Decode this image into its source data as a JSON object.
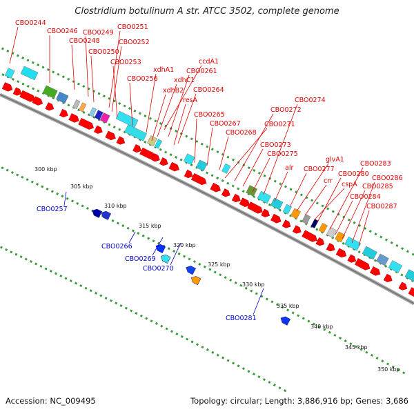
{
  "title": "Clostridium botulinum A str. ATCC 3502, complete genome",
  "footer": {
    "accession": "Accession: NC_009495",
    "topology": "Topology: circular; Length: 3,886,916 bp; Genes: 3,686"
  },
  "colors": {
    "forward_arrow": "#ff0000",
    "forward_label": "#e00000",
    "reverse_label": "#0000cc",
    "backbone": "#999999",
    "dots": "#3a9a3a"
  },
  "forward_genes": [
    "CBO0244",
    "CBO0246",
    "CBO0248",
    "CBO0249",
    "CBO0250",
    "CBO0251",
    "CBO0252",
    "CBO0253",
    "CBO0256",
    "xdhA1",
    "xdhB2",
    "xdhC1",
    "ccdA1",
    "CBO0261",
    "resA",
    "CBO0264",
    "CBO0265",
    "CBO0267",
    "CBO0268",
    "CBO0271",
    "CBO0272",
    "CBO0273",
    "CBO0274",
    "CBO0275",
    "alr",
    "CBO0277",
    "glvA1",
    "crr",
    "cspA",
    "CBO0280",
    "CBO0283",
    "CBO0284",
    "CBO0285",
    "CBO0286",
    "CBO0287"
  ],
  "reverse_genes": [
    "CBO0257",
    "CBO0266",
    "CBO0269",
    "CBO0270",
    "CBO0281"
  ],
  "ticks": [
    "300 kbp",
    "305 kbp",
    "310 kbp",
    "315 kbp",
    "320 kbp",
    "325 kbp",
    "330 kbp",
    "335 kbp",
    "340 kbp",
    "345 kbp",
    "350 kbp"
  ]
}
